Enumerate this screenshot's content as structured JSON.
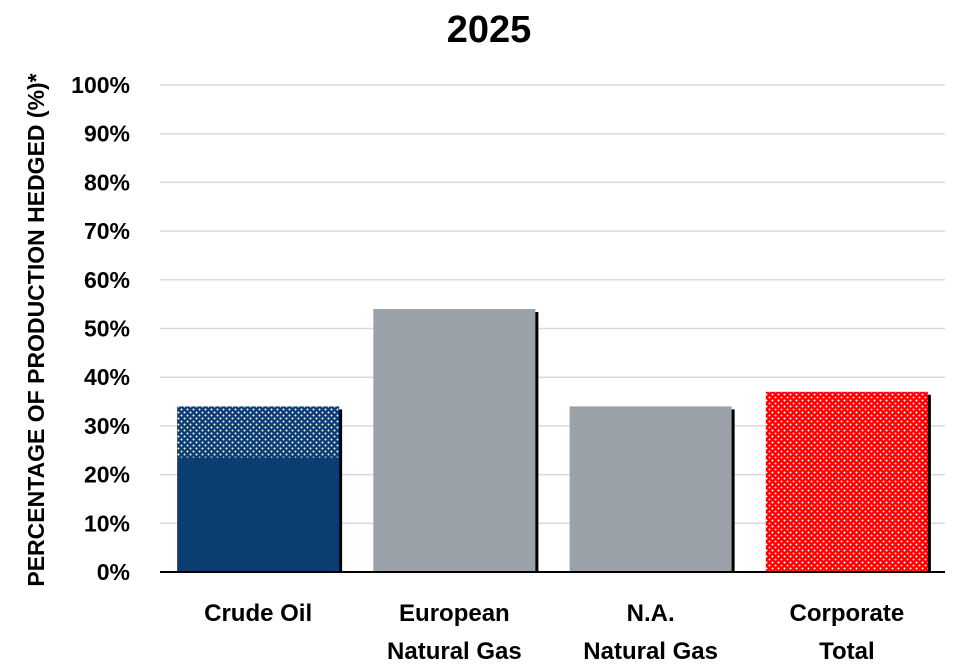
{
  "chart_data": {
    "type": "bar",
    "title": "2025",
    "xlabel": "",
    "ylabel": "PERCENTAGE OF PRODUCTION HEDGED (%)*",
    "ylim": [
      0,
      100
    ],
    "yticks": [
      0,
      10,
      20,
      30,
      40,
      50,
      60,
      70,
      80,
      90,
      100
    ],
    "ytick_suffix": "%",
    "grid": true,
    "legend": "none",
    "categories": [
      [
        "Crude Oil"
      ],
      [
        "European",
        "Natural Gas"
      ],
      [
        "N.A.",
        "Natural Gas"
      ],
      [
        "Corporate",
        "Total"
      ]
    ],
    "bars": [
      {
        "segments": [
          {
            "value": 23.5,
            "color": "#0b3d72",
            "pattern": "solid"
          },
          {
            "value": 10.5,
            "color": "#0b3d72",
            "pattern": "dotted"
          }
        ]
      },
      {
        "segments": [
          {
            "value": 54,
            "color": "#9aa1a8",
            "pattern": "solid"
          }
        ]
      },
      {
        "segments": [
          {
            "value": 34,
            "color": "#9aa1a8",
            "pattern": "solid"
          }
        ]
      },
      {
        "segments": [
          {
            "value": 37,
            "color": "#ff0000",
            "pattern": "dotted"
          }
        ]
      }
    ]
  }
}
